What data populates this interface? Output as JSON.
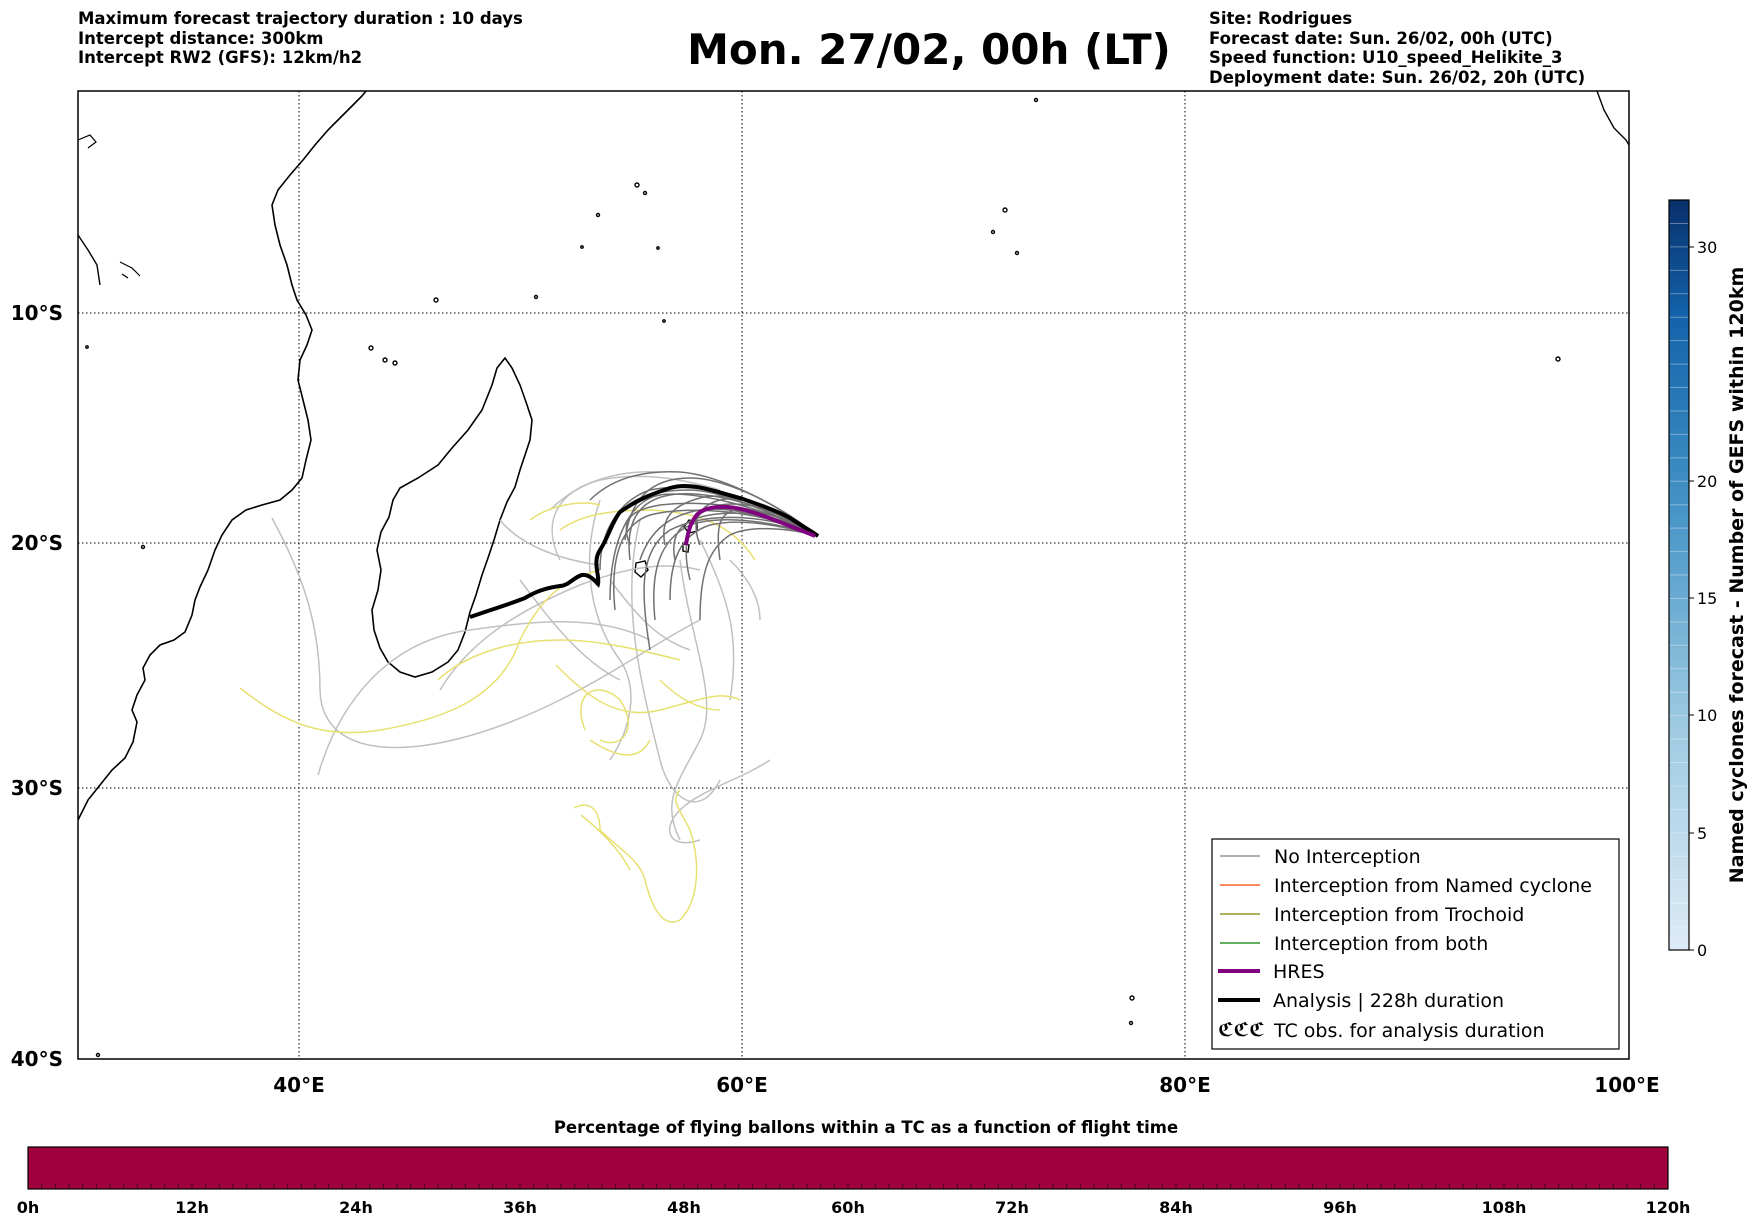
{
  "header_left": [
    "Maximum forecast trajectory duration : 10 days",
    "Intercept distance: 300km",
    "Intercept RW2 (GFS):  12km/h2"
  ],
  "title": "Mon. 27/02, 00h (LT)",
  "header_right": [
    "Site: Rodrigues",
    "Forecast date: Sun. 26/02, 00h (UTC)",
    "Speed function: U10_speed_Helikite_3",
    "Deployment date: Sun. 26/02, 20h (UTC)"
  ],
  "map": {
    "lon_range": [
      30,
      100
    ],
    "lat_range": [
      -40,
      -1.5
    ],
    "lon_ticks": [
      "40°E",
      "60°E",
      "80°E",
      "100°E"
    ],
    "lat_ticks": [
      "10°S",
      "20°S",
      "30°S",
      "40°S"
    ],
    "grid": "dotted"
  },
  "legend": {
    "placement": "lower-right",
    "items": [
      {
        "label": "No Interception",
        "color": "#808080"
      },
      {
        "label": "Interception from Named cyclone",
        "color": "#ff4500"
      },
      {
        "label": "Interception from Trochoid",
        "color": "#808000"
      },
      {
        "label": "Interception from both",
        "color": "#008000"
      },
      {
        "label": "HRES",
        "color": "#800080"
      },
      {
        "label": "Analysis | 228h duration",
        "color": "#000000"
      },
      {
        "label": "TC obs. for analysis duration",
        "symbol": "ℭℭℭ"
      }
    ]
  },
  "right_colorbar": {
    "label": "Named cyclones forecast - Number of GEFS within 120km",
    "ticks": [
      "0",
      "5",
      "10",
      "15",
      "20",
      "30"
    ],
    "range": [
      0,
      32
    ],
    "colors": [
      "#deebf7",
      "#08306b"
    ]
  },
  "bottom_colorbar": {
    "title": "Percentage of flying ballons within a TC as a function of flight time",
    "ticks": [
      "0h",
      "12h",
      "24h",
      "36h",
      "48h",
      "60h",
      "72h",
      "84h",
      "96h",
      "108h",
      "120h"
    ],
    "fill_color": "#a0003c"
  }
}
